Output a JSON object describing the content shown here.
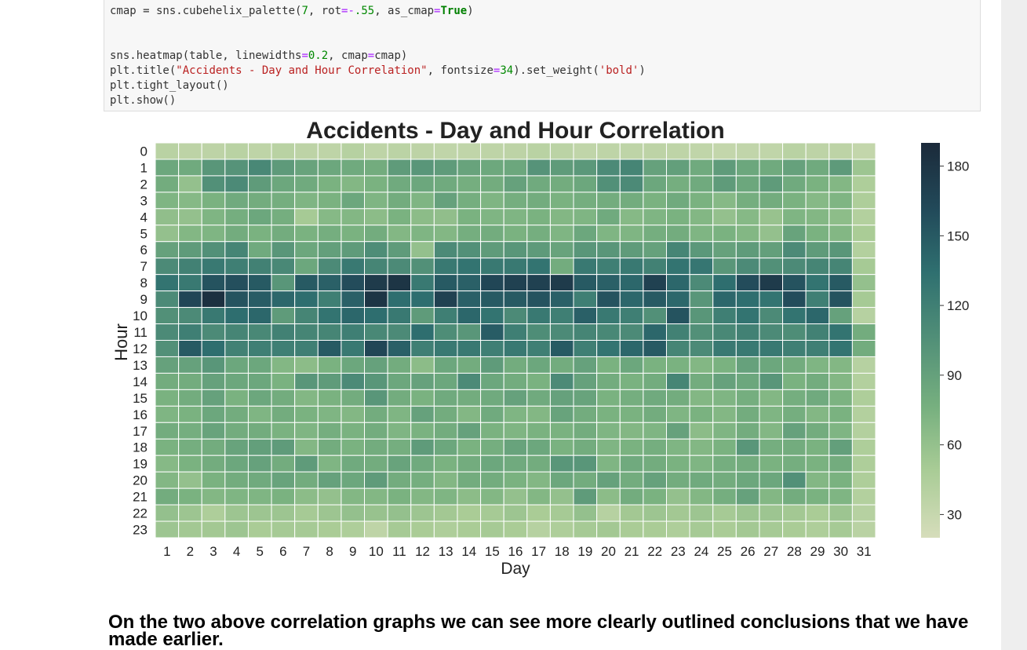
{
  "code": {
    "line1": "cmap = sns.cubehelix_palette(7, rot=-.55, as_cmap=True)",
    "line2": "sns.heatmap(table, linewidths=0.2, cmap=cmap)",
    "line3": "plt.title(\"Accidents - Day and Hour Correlation\", fontsize=34).set_weight('bold')",
    "line4": "plt.tight_layout()",
    "line5": "plt.show()"
  },
  "chart_data": {
    "type": "heatmap",
    "title": "Accidents - Day and Hour Correlation",
    "xlabel": "Day",
    "ylabel": "Hour",
    "x_categories": [
      "1",
      "2",
      "3",
      "4",
      "5",
      "6",
      "7",
      "8",
      "9",
      "10",
      "11",
      "12",
      "13",
      "14",
      "15",
      "16",
      "17",
      "18",
      "19",
      "20",
      "21",
      "22",
      "23",
      "24",
      "25",
      "26",
      "27",
      "28",
      "29",
      "30",
      "31"
    ],
    "y_categories": [
      "0",
      "1",
      "2",
      "3",
      "4",
      "5",
      "6",
      "7",
      "8",
      "9",
      "10",
      "11",
      "12",
      "13",
      "14",
      "15",
      "16",
      "17",
      "18",
      "19",
      "20",
      "21",
      "22",
      "23"
    ],
    "colorbar": {
      "range": [
        20,
        190
      ],
      "ticks": [
        30,
        60,
        90,
        120,
        150,
        180
      ]
    },
    "colormap": [
      "#d6ddbb",
      "#a9cc96",
      "#77b07f",
      "#529078",
      "#2f7070",
      "#224a5a",
      "#1b2a3a"
    ],
    "values": [
      [
        38,
        36,
        36,
        38,
        35,
        38,
        36,
        35,
        40,
        35,
        37,
        36,
        34,
        34,
        35,
        36,
        38,
        37,
        34,
        35,
        35,
        36,
        35,
        34,
        32,
        33,
        34,
        38,
        36,
        36,
        32
      ],
      [
        85,
        82,
        100,
        102,
        112,
        96,
        88,
        85,
        82,
        80,
        95,
        100,
        95,
        88,
        84,
        85,
        102,
        95,
        98,
        110,
        115,
        90,
        92,
        82,
        95,
        85,
        82,
        90,
        82,
        96,
        55
      ],
      [
        80,
        60,
        105,
        110,
        95,
        85,
        82,
        75,
        70,
        75,
        82,
        85,
        82,
        78,
        80,
        90,
        82,
        80,
        85,
        105,
        110,
        85,
        78,
        82,
        95,
        85,
        95,
        82,
        75,
        70,
        45
      ],
      [
        72,
        68,
        75,
        82,
        80,
        78,
        72,
        75,
        85,
        72,
        80,
        72,
        90,
        78,
        72,
        78,
        80,
        75,
        78,
        80,
        80,
        75,
        82,
        75,
        68,
        78,
        80,
        75,
        68,
        72,
        45
      ],
      [
        62,
        60,
        72,
        78,
        85,
        78,
        50,
        68,
        70,
        65,
        75,
        65,
        62,
        75,
        72,
        72,
        75,
        70,
        72,
        82,
        68,
        72,
        75,
        70,
        60,
        68,
        58,
        72,
        70,
        64,
        42
      ],
      [
        60,
        70,
        72,
        80,
        75,
        80,
        75,
        78,
        75,
        80,
        70,
        72,
        70,
        78,
        80,
        75,
        78,
        72,
        85,
        72,
        72,
        78,
        80,
        72,
        75,
        70,
        60,
        88,
        75,
        70,
        48
      ],
      [
        90,
        95,
        105,
        115,
        82,
        100,
        85,
        92,
        95,
        108,
        95,
        60,
        110,
        105,
        95,
        100,
        96,
        88,
        100,
        100,
        95,
        90,
        115,
        98,
        90,
        95,
        92,
        110,
        95,
        100,
        42
      ],
      [
        110,
        118,
        125,
        120,
        118,
        112,
        85,
        110,
        125,
        115,
        110,
        105,
        125,
        130,
        125,
        125,
        130,
        80,
        125,
        120,
        125,
        118,
        130,
        128,
        100,
        110,
        105,
        110,
        115,
        115,
        50
      ],
      [
        130,
        125,
        155,
        158,
        150,
        100,
        150,
        145,
        160,
        175,
        180,
        125,
        150,
        145,
        165,
        170,
        170,
        175,
        150,
        145,
        140,
        170,
        140,
        110,
        135,
        160,
        175,
        155,
        130,
        150,
        60
      ],
      [
        110,
        165,
        185,
        155,
        148,
        140,
        135,
        120,
        145,
        180,
        135,
        135,
        170,
        145,
        150,
        150,
        155,
        145,
        120,
        155,
        140,
        150,
        140,
        100,
        140,
        135,
        130,
        160,
        120,
        155,
        50
      ],
      [
        105,
        110,
        125,
        135,
        140,
        95,
        115,
        130,
        140,
        135,
        125,
        95,
        120,
        140,
        130,
        110,
        125,
        120,
        145,
        125,
        120,
        105,
        155,
        100,
        120,
        130,
        110,
        130,
        140,
        90,
        40
      ],
      [
        110,
        120,
        110,
        115,
        112,
        118,
        115,
        115,
        120,
        112,
        110,
        135,
        108,
        100,
        148,
        120,
        108,
        110,
        115,
        112,
        110,
        140,
        118,
        105,
        112,
        118,
        110,
        108,
        118,
        130,
        80
      ],
      [
        105,
        150,
        135,
        118,
        120,
        120,
        120,
        150,
        125,
        165,
        145,
        120,
        125,
        125,
        120,
        125,
        120,
        150,
        120,
        130,
        140,
        150,
        115,
        110,
        125,
        125,
        125,
        120,
        120,
        130,
        80
      ],
      [
        90,
        90,
        100,
        85,
        85,
        70,
        65,
        75,
        85,
        90,
        80,
        65,
        85,
        80,
        95,
        80,
        85,
        80,
        90,
        75,
        85,
        75,
        75,
        70,
        75,
        90,
        85,
        80,
        72,
        70,
        40
      ],
      [
        80,
        80,
        90,
        85,
        85,
        75,
        100,
        95,
        110,
        100,
        85,
        90,
        85,
        110,
        85,
        80,
        75,
        110,
        90,
        80,
        75,
        80,
        115,
        80,
        90,
        85,
        100,
        75,
        80,
        70,
        42
      ],
      [
        75,
        80,
        90,
        75,
        85,
        80,
        70,
        75,
        80,
        100,
        80,
        75,
        82,
        80,
        82,
        90,
        82,
        90,
        88,
        75,
        78,
        82,
        80,
        70,
        72,
        78,
        70,
        78,
        82,
        74,
        45
      ],
      [
        72,
        75,
        85,
        80,
        72,
        80,
        75,
        72,
        70,
        80,
        72,
        90,
        80,
        70,
        82,
        72,
        70,
        88,
        80,
        75,
        75,
        80,
        72,
        75,
        70,
        80,
        72,
        78,
        70,
        75,
        42
      ],
      [
        80,
        78,
        88,
        80,
        80,
        75,
        72,
        78,
        75,
        80,
        72,
        75,
        80,
        90,
        75,
        72,
        75,
        75,
        80,
        72,
        70,
        72,
        90,
        65,
        72,
        80,
        70,
        90,
        80,
        72,
        42
      ],
      [
        75,
        78,
        80,
        88,
        92,
        95,
        70,
        80,
        75,
        80,
        78,
        95,
        85,
        75,
        78,
        88,
        85,
        75,
        80,
        72,
        75,
        78,
        72,
        70,
        75,
        100,
        78,
        80,
        75,
        92,
        45
      ],
      [
        68,
        75,
        80,
        85,
        90,
        80,
        95,
        72,
        82,
        80,
        88,
        82,
        75,
        80,
        85,
        82,
        80,
        100,
        100,
        72,
        82,
        80,
        75,
        72,
        78,
        80,
        75,
        78,
        75,
        80,
        45
      ],
      [
        70,
        60,
        75,
        80,
        82,
        88,
        80,
        90,
        85,
        95,
        80,
        78,
        70,
        80,
        80,
        75,
        70,
        85,
        80,
        90,
        80,
        90,
        80,
        82,
        80,
        85,
        85,
        105,
        70,
        75,
        45
      ],
      [
        80,
        75,
        70,
        72,
        72,
        75,
        65,
        60,
        70,
        70,
        75,
        70,
        72,
        65,
        70,
        60,
        70,
        60,
        95,
        65,
        80,
        75,
        60,
        70,
        78,
        90,
        70,
        80,
        75,
        72,
        42
      ],
      [
        60,
        55,
        45,
        55,
        55,
        55,
        50,
        55,
        60,
        58,
        60,
        55,
        52,
        48,
        50,
        55,
        48,
        50,
        60,
        40,
        52,
        55,
        52,
        55,
        50,
        55,
        55,
        52,
        48,
        55,
        40
      ],
      [
        55,
        52,
        52,
        55,
        48,
        50,
        50,
        48,
        45,
        35,
        50,
        48,
        45,
        48,
        50,
        48,
        40,
        45,
        50,
        52,
        48,
        48,
        45,
        50,
        48,
        52,
        50,
        48,
        45,
        50,
        38
      ]
    ]
  },
  "conclusion": "On the two above correlation graphs we can see more clearly outlined conclusions that we have made earlier."
}
